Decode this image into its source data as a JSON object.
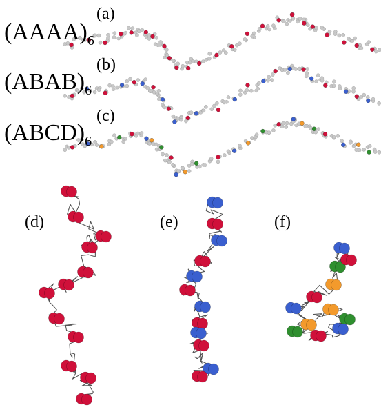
{
  "row_labels": [
    {
      "id": "a",
      "text": "(AAAA)",
      "subscript": "6"
    },
    {
      "id": "b",
      "text": "(ABAB)",
      "subscript": "6"
    },
    {
      "id": "c",
      "text": "(ABCD)",
      "subscript": "6"
    }
  ],
  "panel_labels": {
    "a": "(a)",
    "b": "(b)",
    "c": "(c)",
    "d": "(d)",
    "e": "(e)",
    "f": "(f)"
  },
  "colors": {
    "A": "#d0103a",
    "B": "#3a5fcf",
    "C": "#f39a2c",
    "D": "#2f8f2f",
    "bead": "#c8c8c8",
    "backbone": "#555555"
  },
  "sequences": {
    "a": "AAAA",
    "b": "ABAB",
    "c": "ABCD"
  },
  "repeats": 6
}
